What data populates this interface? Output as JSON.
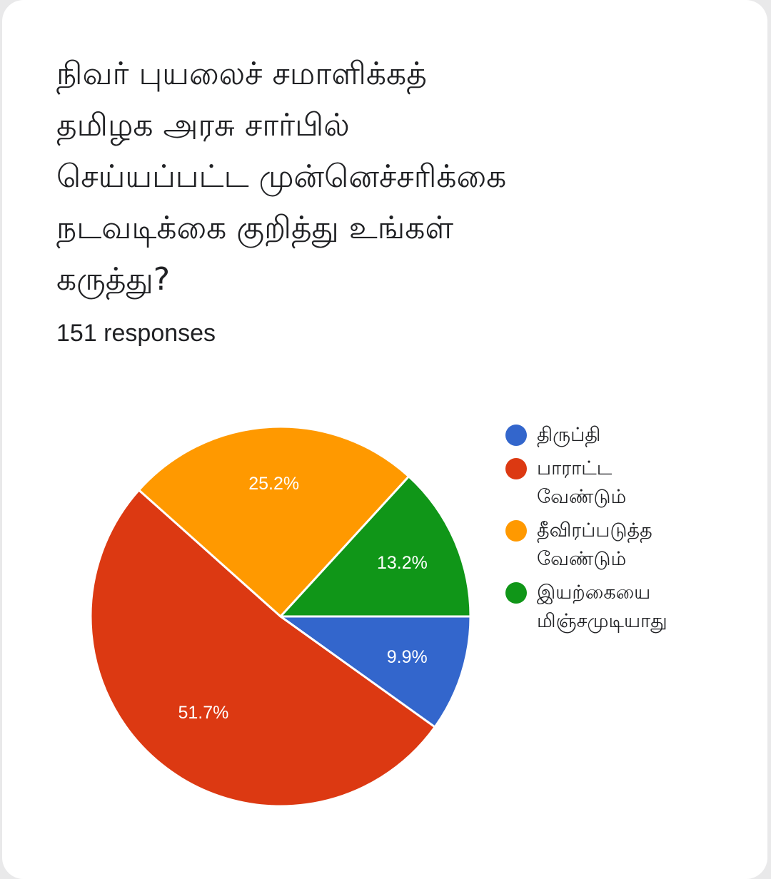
{
  "question": {
    "lines": [
      "நிவர் புயலைச் சமாளிக்கத்",
      "தமிழக அரசு சார்பில்",
      "செய்யப்பட்ட முன்னெச்சரிக்கை",
      "நடவடிக்கை குறித்து உங்கள்",
      "கருத்து?"
    ]
  },
  "responses_label": "151 responses",
  "chart_data": {
    "type": "pie",
    "title": "நிவர் புயலைச் சமாளிக்கத் தமிழக அரசு சார்பில் செய்யப்பட்ட முன்னெச்சரிக்கை நடவடிக்கை குறித்து உங்கள் கருத்து?",
    "total_responses": 151,
    "legend_position": "right",
    "slices": [
      {
        "label": "திருப்தி",
        "value": 9.9,
        "display": "9.9%",
        "color": "#3366cc"
      },
      {
        "label": "பாராட்ட\nவேண்டும்",
        "value": 51.7,
        "display": "51.7%",
        "color": "#dc3912"
      },
      {
        "label": "தீவிரப்படுத்த\nவேண்டும்",
        "value": 25.2,
        "display": "25.2%",
        "color": "#ff9900"
      },
      {
        "label": "இயற்கையை\nமிஞ்சமுடியாது",
        "value": 13.2,
        "display": "13.2%",
        "color": "#109618"
      }
    ]
  }
}
